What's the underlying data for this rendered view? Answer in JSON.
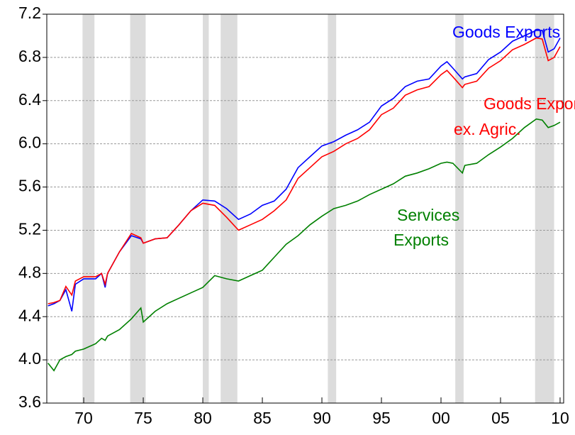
{
  "chart_data": {
    "type": "line",
    "xlim": [
      1966.9,
      2010.3
    ],
    "ylim": [
      3.6,
      7.2
    ],
    "yticks": [
      {
        "value": 3.6,
        "label": "3.6"
      },
      {
        "value": 4.0,
        "label": "4.0"
      },
      {
        "value": 4.4,
        "label": "4.4"
      },
      {
        "value": 4.8,
        "label": "4.8"
      },
      {
        "value": 5.2,
        "label": "5.2"
      },
      {
        "value": 5.6,
        "label": "5.6"
      },
      {
        "value": 6.0,
        "label": "6.0"
      },
      {
        "value": 6.4,
        "label": "6.4"
      },
      {
        "value": 6.8,
        "label": "6.8"
      },
      {
        "value": 7.2,
        "label": "7.2"
      }
    ],
    "xticks": [
      {
        "value": 1970,
        "label": "70"
      },
      {
        "value": 1975,
        "label": "75"
      },
      {
        "value": 1980,
        "label": "80"
      },
      {
        "value": 1985,
        "label": "85"
      },
      {
        "value": 1990,
        "label": "90"
      },
      {
        "value": 1995,
        "label": "95"
      },
      {
        "value": 2000,
        "label": "00"
      },
      {
        "value": 2005,
        "label": "05"
      },
      {
        "value": 2010,
        "label": "10"
      }
    ],
    "grid": true,
    "shaded_periods": [
      [
        1969.9,
        1970.9
      ],
      [
        1973.9,
        1975.2
      ],
      [
        1980.0,
        1980.5
      ],
      [
        1981.5,
        1982.9
      ],
      [
        1990.5,
        1991.2
      ],
      [
        2001.2,
        2001.9
      ],
      [
        2007.9,
        2009.5
      ]
    ],
    "x": [
      1967,
      1967.5,
      1968,
      1968.5,
      1969,
      1969.3,
      1970,
      1971,
      1971.5,
      1971.8,
      1972,
      1973,
      1974,
      1974.8,
      1975,
      1976,
      1977,
      1978,
      1979,
      1980,
      1981,
      1982,
      1983,
      1984,
      1985,
      1986,
      1987,
      1988,
      1989,
      1990,
      1991,
      1992,
      1993,
      1994,
      1995,
      1996,
      1997,
      1998,
      1999,
      2000,
      2000.5,
      2001,
      2001.8,
      2002,
      2003,
      2004,
      2005,
      2006,
      2007,
      2008,
      2008.5,
      2009,
      2009.5,
      2010
    ],
    "series": [
      {
        "name": [
          "Goods Exports"
        ],
        "color": "#0000ff",
        "values": [
          4.5,
          4.52,
          4.55,
          4.65,
          4.45,
          4.7,
          4.75,
          4.75,
          4.8,
          4.67,
          4.8,
          5.0,
          5.15,
          5.12,
          5.08,
          5.12,
          5.13,
          5.25,
          5.38,
          5.48,
          5.47,
          5.4,
          5.3,
          5.35,
          5.43,
          5.47,
          5.58,
          5.78,
          5.88,
          5.98,
          6.02,
          6.08,
          6.13,
          6.2,
          6.35,
          6.42,
          6.53,
          6.58,
          6.6,
          6.72,
          6.76,
          6.7,
          6.6,
          6.62,
          6.65,
          6.78,
          6.85,
          6.95,
          7.0,
          7.05,
          7.05,
          6.85,
          6.88,
          6.98
        ]
      },
      {
        "name": [
          "Goods Exports",
          "ex. Agric."
        ],
        "color": "#ff0000",
        "values": [
          4.52,
          4.53,
          4.55,
          4.68,
          4.6,
          4.73,
          4.77,
          4.77,
          4.8,
          4.7,
          4.8,
          5.0,
          5.17,
          5.13,
          5.08,
          5.12,
          5.13,
          5.25,
          5.38,
          5.45,
          5.43,
          5.32,
          5.2,
          5.25,
          5.3,
          5.38,
          5.48,
          5.68,
          5.78,
          5.88,
          5.93,
          6.0,
          6.05,
          6.13,
          6.27,
          6.33,
          6.45,
          6.5,
          6.53,
          6.64,
          6.68,
          6.62,
          6.52,
          6.55,
          6.58,
          6.7,
          6.77,
          6.87,
          6.92,
          6.98,
          6.97,
          6.77,
          6.8,
          6.9
        ]
      },
      {
        "name": [
          "Services",
          "Exports"
        ],
        "color": "#008000",
        "values": [
          3.97,
          3.9,
          4.0,
          4.03,
          4.05,
          4.08,
          4.1,
          4.15,
          4.2,
          4.18,
          4.22,
          4.28,
          4.38,
          4.48,
          4.35,
          4.45,
          4.52,
          4.57,
          4.62,
          4.67,
          4.78,
          4.75,
          4.73,
          4.78,
          4.83,
          4.95,
          5.07,
          5.15,
          5.25,
          5.33,
          5.4,
          5.43,
          5.47,
          5.53,
          5.58,
          5.63,
          5.7,
          5.73,
          5.77,
          5.82,
          5.83,
          5.82,
          5.73,
          5.8,
          5.82,
          5.9,
          5.97,
          6.05,
          6.15,
          6.23,
          6.22,
          6.15,
          6.17,
          6.2
        ]
      }
    ]
  }
}
